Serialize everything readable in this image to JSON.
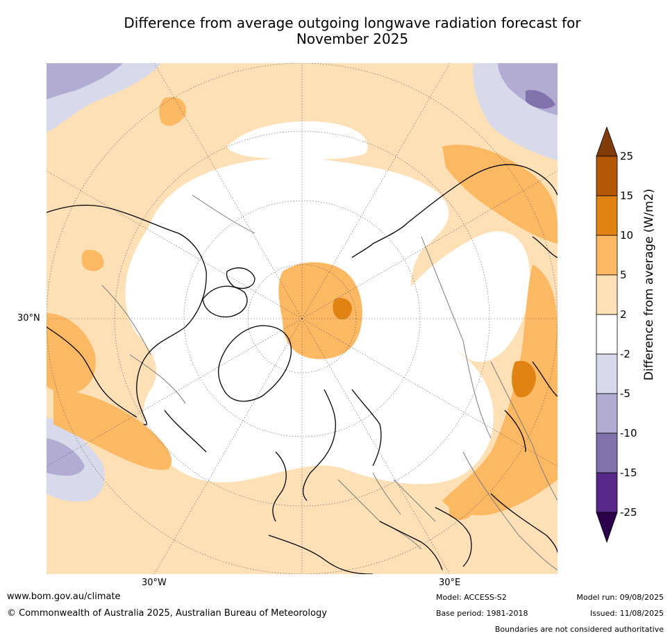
{
  "title": {
    "line1": "Difference from average outgoing longwave radiation forecast for",
    "line2": "November 2025"
  },
  "map": {
    "projection": "north polar stereographic",
    "lat_labels": [
      "30°N"
    ],
    "lon_labels": [
      "30°W",
      "30°E"
    ],
    "land_outline_color": "#000000",
    "border_color": "#7a7a7a"
  },
  "colorbar": {
    "label": "Difference from average (W/m2)",
    "ticks": [
      "25",
      "15",
      "10",
      "5",
      "2",
      "-2",
      "-5",
      "-10",
      "-15",
      "-25"
    ],
    "levels": [
      {
        "range": "> 25",
        "color": "#7f3b08"
      },
      {
        "range": "15 to 25",
        "color": "#b35806"
      },
      {
        "range": "10 to 15",
        "color": "#e08214"
      },
      {
        "range": "5 to 10",
        "color": "#fdb863"
      },
      {
        "range": "2 to 5",
        "color": "#fee0b6"
      },
      {
        "range": "-2 to 2",
        "color": "#ffffff"
      },
      {
        "range": "-5 to -2",
        "color": "#d8daeb"
      },
      {
        "range": "-10 to -5",
        "color": "#b2abd2"
      },
      {
        "range": "-15 to -10",
        "color": "#8073ac"
      },
      {
        "range": "-25 to -15",
        "color": "#542788"
      },
      {
        "range": "< -25",
        "color": "#2d004b"
      }
    ]
  },
  "footer": {
    "website": "www.bom.gov.au/climate",
    "copyright": "© Commonwealth of Australia 2025, Australian Bureau of Meteorology",
    "model": "Model: ACCESS-S2",
    "base_period": "Base period: 1981-2018",
    "model_run": "Model run: 09/08/2025",
    "issued": "Issued: 11/08/2025",
    "disclaimer": "Boundaries are not considered authoritative"
  }
}
